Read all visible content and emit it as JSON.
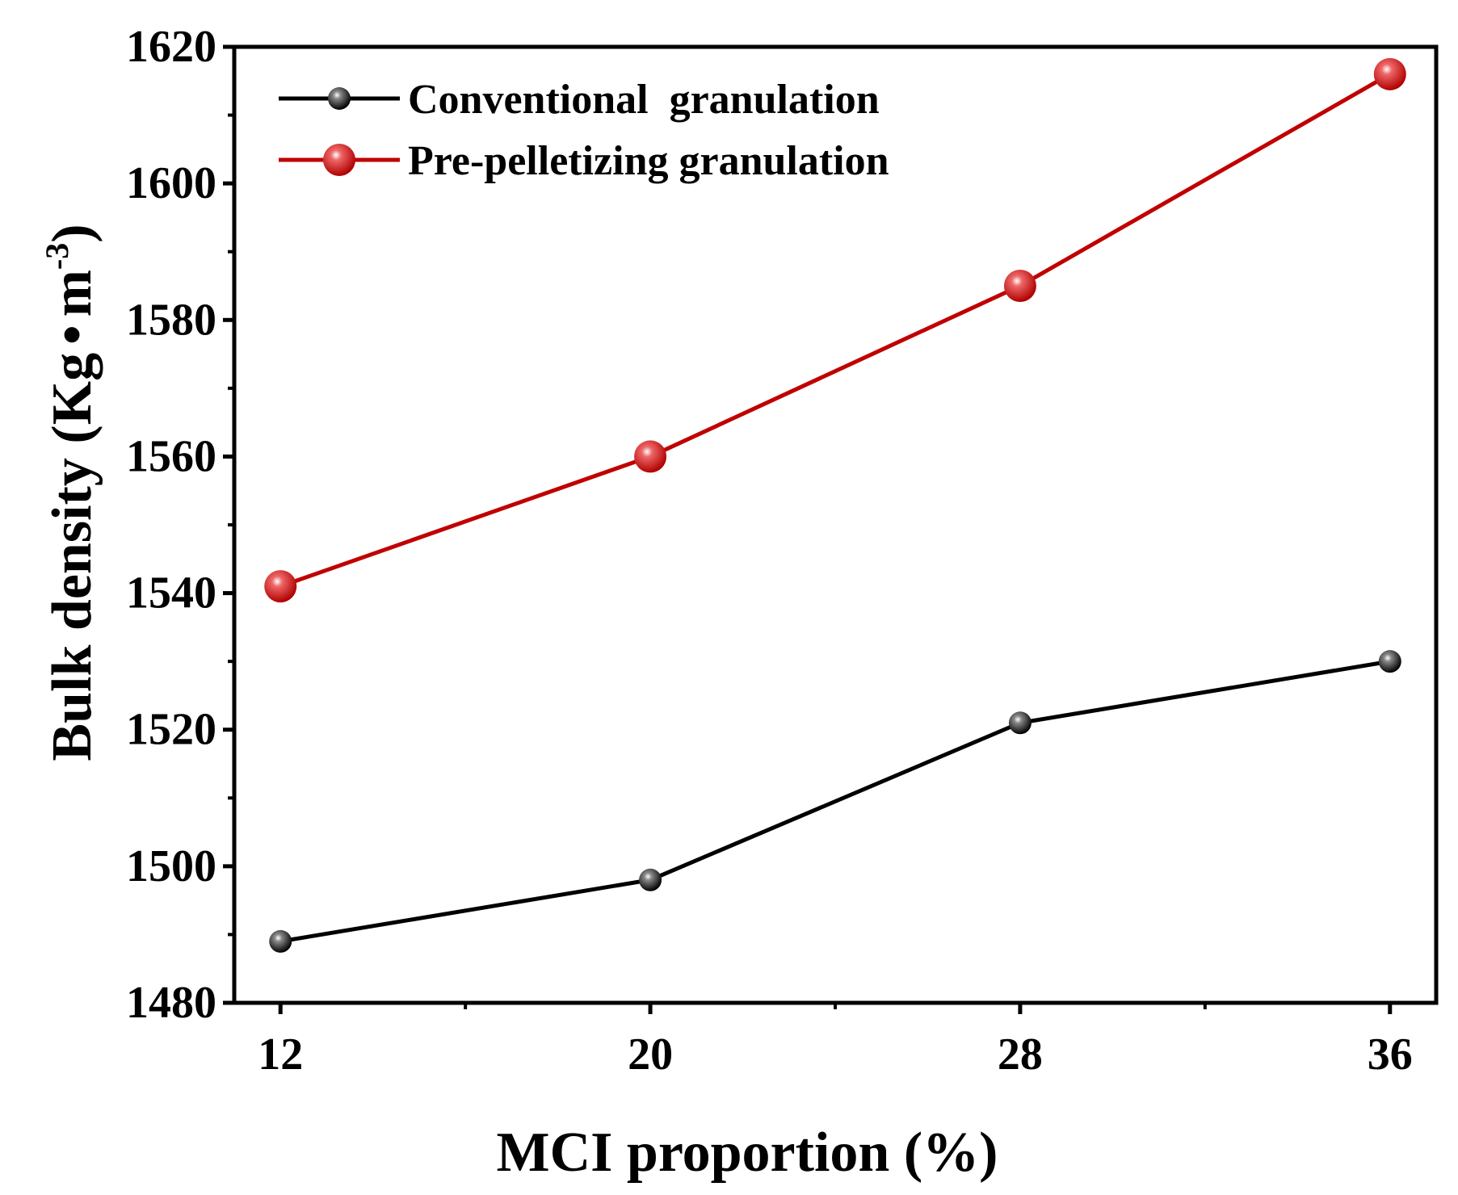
{
  "chart_data": {
    "type": "line",
    "title": "",
    "xlabel": "MCI proportion (%)",
    "ylabel_main": "Bulk density (Kg",
    "ylabel_dot": "•",
    "ylabel_unit": "m",
    "ylabel_sup": "-3",
    "ylabel_close": ")",
    "x": [
      12,
      20,
      28,
      36
    ],
    "x_tick_labels": [
      "12",
      "20",
      "28",
      "36"
    ],
    "y_ticks": [
      1480,
      1500,
      1520,
      1540,
      1560,
      1580,
      1600,
      1620
    ],
    "y_tick_labels": [
      "1480",
      "1500",
      "1520",
      "1540",
      "1560",
      "1580",
      "1600",
      "1620"
    ],
    "xlim": [
      11,
      37
    ],
    "ylim": [
      1480,
      1620
    ],
    "grid": false,
    "legend_position": "top-left",
    "series": [
      {
        "name": "Conventional  granulation",
        "color": "#000000",
        "values": [
          1489,
          1498,
          1521,
          1530
        ]
      },
      {
        "name": "Pre-pelletizing granulation",
        "color": "#c00000",
        "values": [
          1541,
          1560,
          1585,
          1616
        ]
      }
    ]
  }
}
